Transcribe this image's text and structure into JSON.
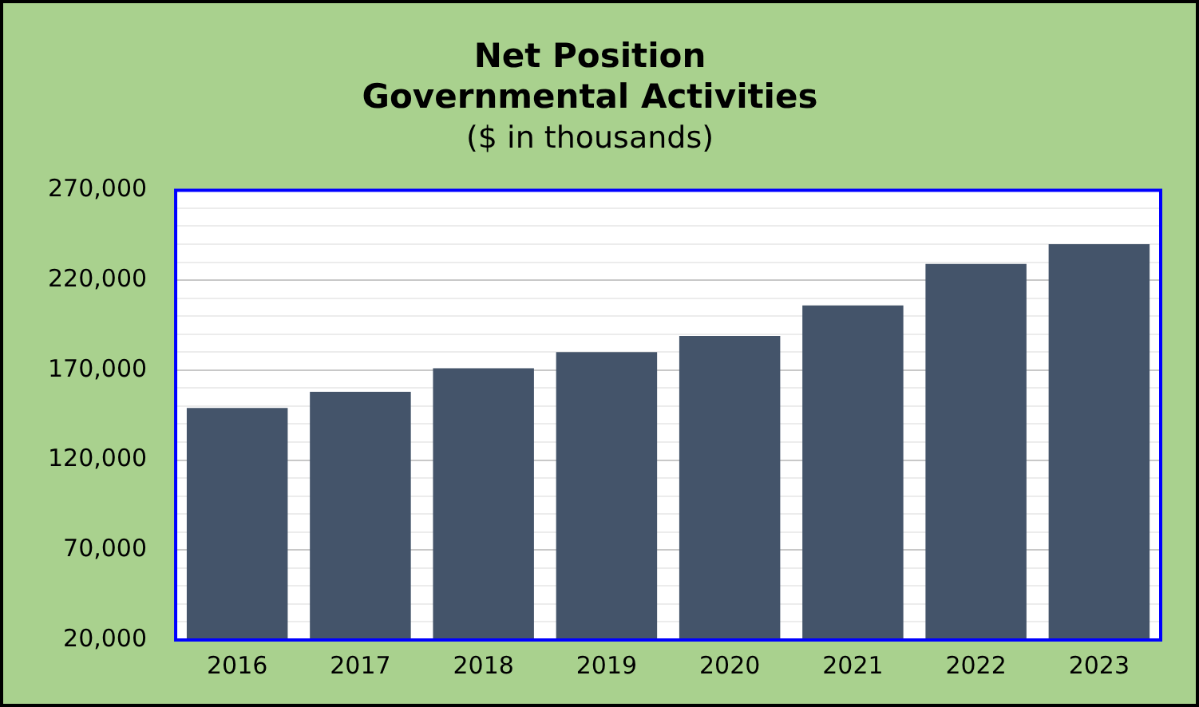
{
  "chart_data": {
    "type": "bar",
    "title": "Net Position\nGovernmental Activities",
    "subtitle": "($ in thousands)",
    "categories": [
      "2016",
      "2017",
      "2018",
      "2019",
      "2020",
      "2021",
      "2022",
      "2023"
    ],
    "values": [
      149000,
      158000,
      171000,
      180000,
      189000,
      206000,
      229000,
      240000
    ],
    "color": "#44546a",
    "ylim": [
      20000,
      270000
    ],
    "yticks": [
      {
        "value": 20000,
        "label": "20,000"
      },
      {
        "value": 30000,
        "label": null
      },
      {
        "value": 40000,
        "label": null
      },
      {
        "value": 50000,
        "label": null
      },
      {
        "value": 60000,
        "label": null
      },
      {
        "value": 70000,
        "label": "70,000"
      },
      {
        "value": 80000,
        "label": null
      },
      {
        "value": 90000,
        "label": null
      },
      {
        "value": 100000,
        "label": null
      },
      {
        "value": 110000,
        "label": null
      },
      {
        "value": 120000,
        "label": "120,000"
      },
      {
        "value": 130000,
        "label": null
      },
      {
        "value": 140000,
        "label": null
      },
      {
        "value": 150000,
        "label": null
      },
      {
        "value": 160000,
        "label": null
      },
      {
        "value": 170000,
        "label": "170,000"
      },
      {
        "value": 180000,
        "label": null
      },
      {
        "value": 190000,
        "label": null
      },
      {
        "value": 200000,
        "label": null
      },
      {
        "value": 210000,
        "label": null
      },
      {
        "value": 220000,
        "label": "220,000"
      },
      {
        "value": 230000,
        "label": null
      },
      {
        "value": 240000,
        "label": null
      },
      {
        "value": 250000,
        "label": null
      },
      {
        "value": 260000,
        "label": null
      },
      {
        "value": 270000,
        "label": "270,000"
      }
    ],
    "grid": "y",
    "legend": false
  }
}
